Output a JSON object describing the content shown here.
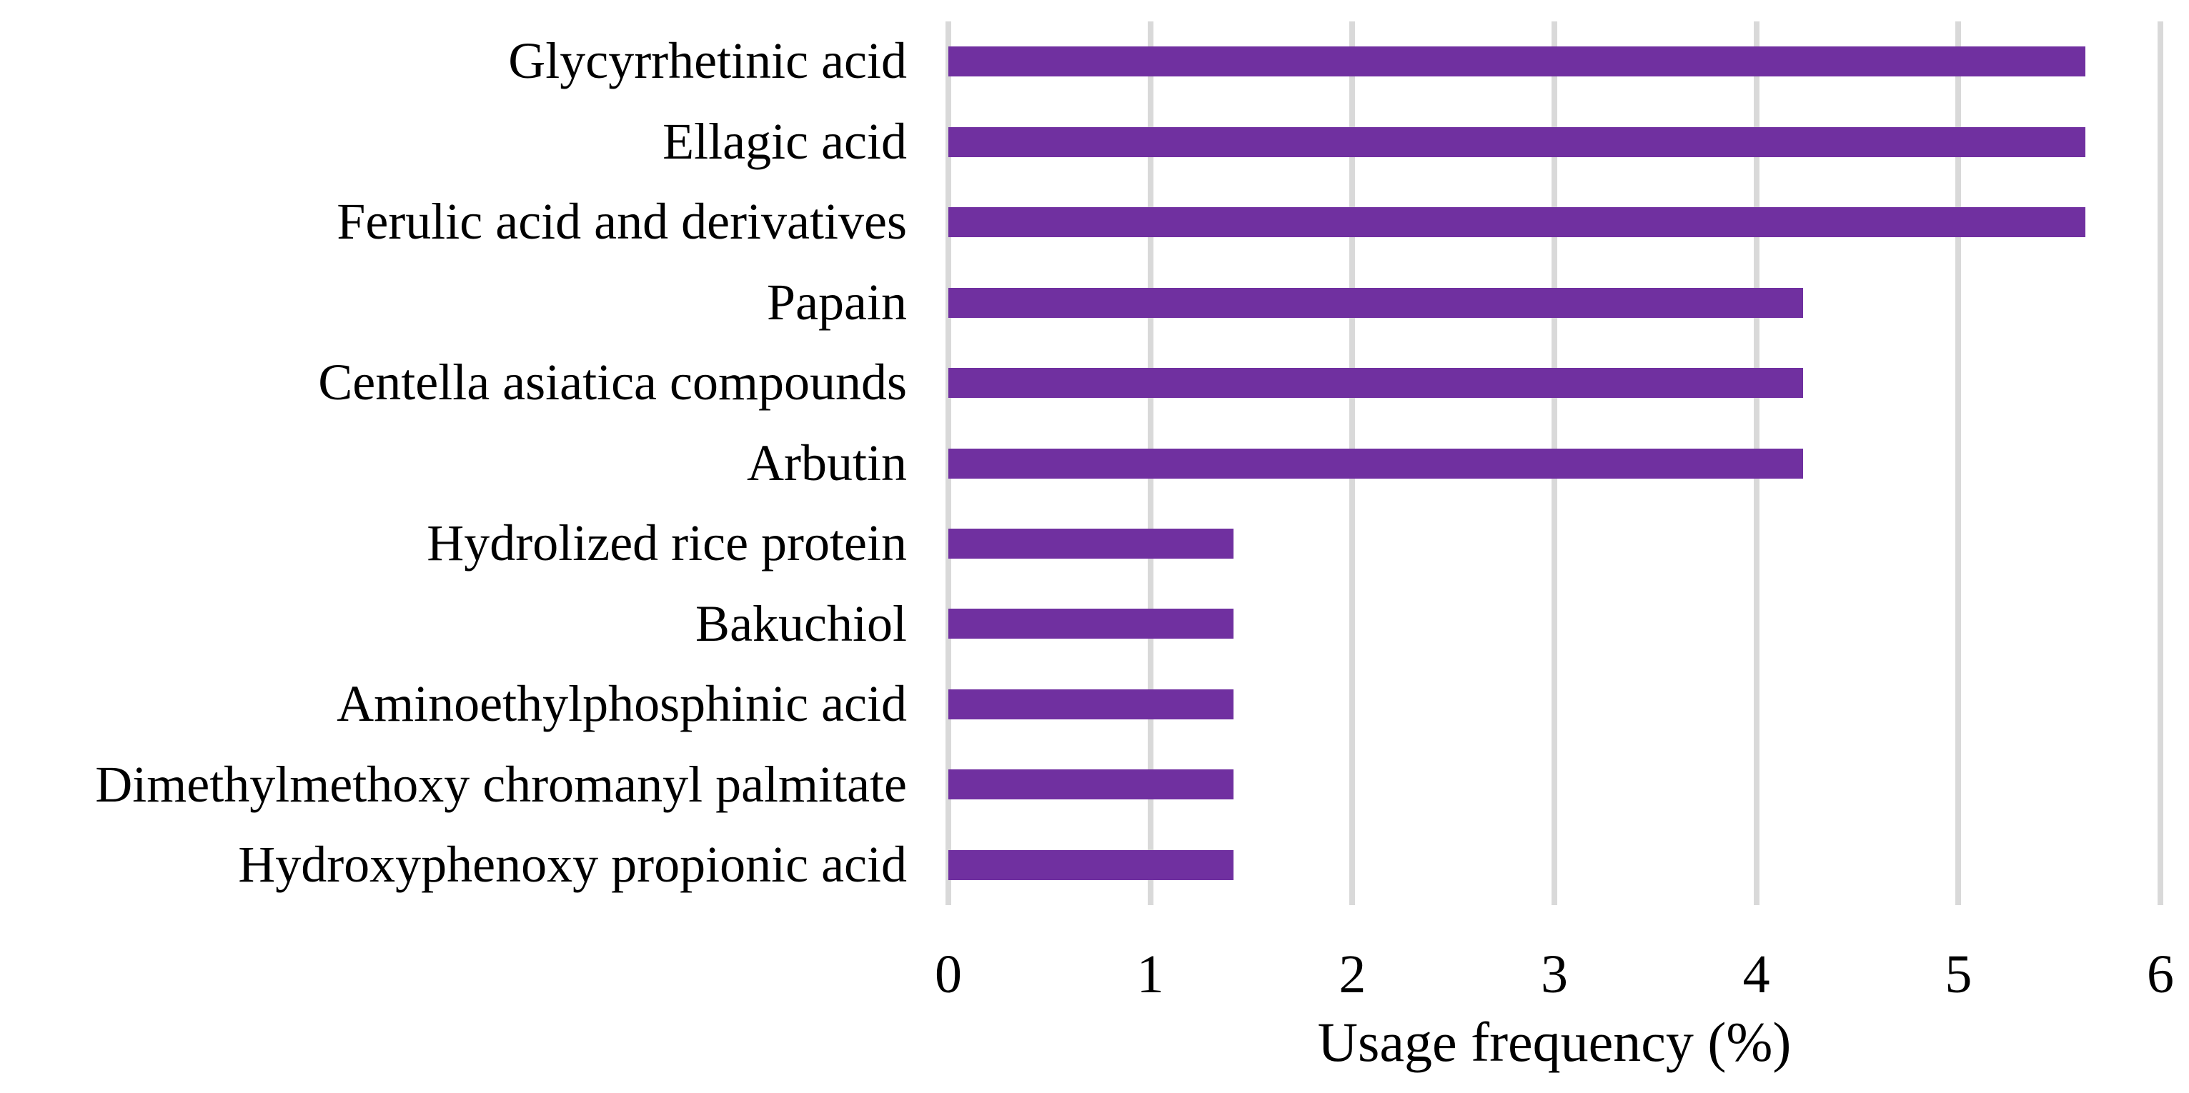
{
  "figure": {
    "background": "#ffffff",
    "text_color": "#000000"
  },
  "chart_data": {
    "type": "bar",
    "orientation": "horizontal",
    "title": "",
    "xlabel": "Usage frequency (%)",
    "ylabel": "",
    "categories": [
      "Glycyrrhetinic acid",
      "Ellagic acid",
      "Ferulic acid and derivatives",
      "Papain",
      "Centella asiatica compounds",
      "Arbutin",
      "Hydrolized rice protein",
      "Bakuchiol",
      "Aminoethylphosphinic acid",
      "Dimethylmethoxy chromanyl palmitate",
      "Hydroxyphenoxy propionic acid"
    ],
    "values": [
      5.63,
      5.63,
      5.63,
      4.23,
      4.23,
      4.23,
      1.41,
      1.41,
      1.41,
      1.41,
      1.41
    ],
    "xlim": [
      0,
      6
    ],
    "xticks": [
      "0",
      "1",
      "2",
      "3",
      "4",
      "5",
      "6"
    ],
    "grid": "vertical",
    "legend_position": "none",
    "bar_color": "#7030A0",
    "gridline_color": "#D9D9D9"
  }
}
